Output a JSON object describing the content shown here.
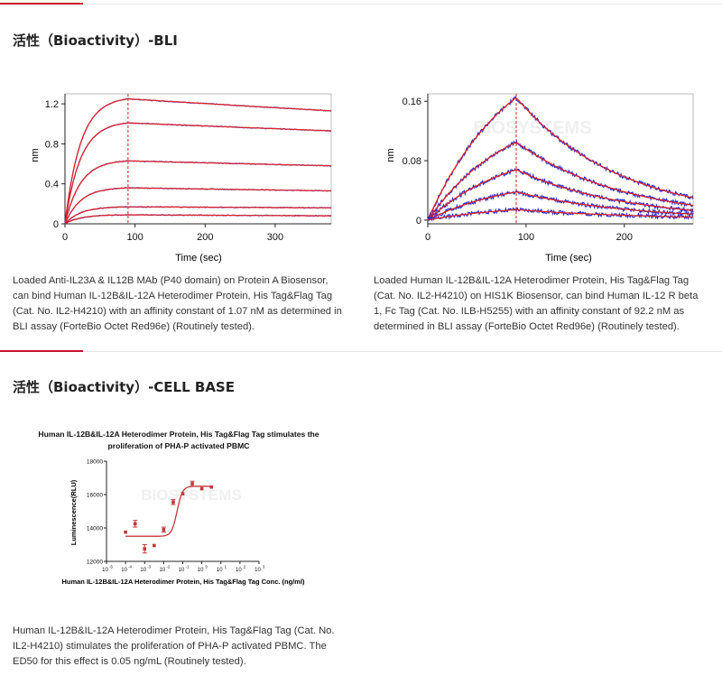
{
  "colors": {
    "accent": "#c8102e",
    "fit": "#e8201f",
    "raw": "#1f2fd4",
    "marker_line": "#e8201f",
    "cell": "#c0393b",
    "axis": "#222222",
    "grid": "#dddddd"
  },
  "sections": [
    {
      "title": "活性（Bioactivity）-BLI"
    },
    {
      "title": "活性（Bioactivity）-CELL BASE"
    }
  ],
  "chart_data": [
    {
      "type": "line",
      "ylabel": "nm",
      "xlabel": "Time (sec)",
      "xlim": [
        0,
        380
      ],
      "ylim": [
        0,
        1.3
      ],
      "xticks": [
        "0",
        "100",
        "200",
        "300"
      ],
      "yticks": [
        "0",
        "0.4",
        "0.8",
        "1.2"
      ],
      "association_end": 90,
      "series": [
        {
          "name": "curve-1",
          "plateau": 1.25,
          "end": 1.13
        },
        {
          "name": "curve-2",
          "plateau": 1.01,
          "end": 0.93
        },
        {
          "name": "curve-3",
          "plateau": 0.63,
          "end": 0.58
        },
        {
          "name": "curve-4",
          "plateau": 0.36,
          "end": 0.33
        },
        {
          "name": "curve-5",
          "plateau": 0.17,
          "end": 0.16
        },
        {
          "name": "curve-6",
          "plateau": 0.09,
          "end": 0.08
        }
      ],
      "caption": "Loaded Anti-IL23A & IL12B MAb (P40 domain) on Protein A Biosensor, can bind Human IL-12B&IL-12A Heterodimer Protein, His Tag&Flag Tag (Cat. No. IL2-H4210) with an affinity constant of 1.07 nM as determined in BLI assay (ForteBio Octet Red96e) (Routinely tested).",
      "caption_lines": [
        "Loaded Anti-IL23A & IL12B MAb (P40 domain) on Protein A Biosensor,",
        "can bind Human IL-12B&IL-12A Heterodimer Protein, His Tag&Flag Tag",
        "(Cat. No. IL2-H4210) with an affinity constant of 1.07 nM as determined in",
        "BLI assay (ForteBio Octet Red96e) (Routinely tested)."
      ]
    },
    {
      "type": "line",
      "ylabel": "nm",
      "xlabel": "Time (sec)",
      "xlim": [
        0,
        270
      ],
      "ylim": [
        -0.005,
        0.17
      ],
      "xticks": [
        "0",
        "100",
        "200"
      ],
      "yticks": [
        "0",
        "0.08",
        "0.16"
      ],
      "association_end": 90,
      "watermark": "BIOSYSTEMS",
      "series": [
        {
          "name": "curve-1",
          "peak": 0.165,
          "end": 0.03
        },
        {
          "name": "curve-2",
          "peak": 0.105,
          "end": 0.02
        },
        {
          "name": "curve-3",
          "peak": 0.068,
          "end": 0.013
        },
        {
          "name": "curve-4",
          "peak": 0.038,
          "end": 0.008
        },
        {
          "name": "curve-5",
          "peak": 0.014,
          "end": 0.004
        }
      ],
      "caption": "Loaded Human IL-12B&IL-12A Heterodimer Protein, His Tag&Flag Tag (Cat. No. IL2-H4210) on HIS1K Biosensor, can bind Human IL-12 R beta 1, Fc Tag (Cat. No. ILB-H5255) with an affinity constant of 92.2 nM as determined in BLI assay (ForteBio Octet Red96e) (Routinely tested).",
      "caption_lines": [
        "Loaded Human IL-12B&IL-12A Heterodimer Protein, His Tag&Flag Tag",
        "(Cat. No. IL2-H4210) on HIS1K Biosensor, can bind Human IL-12 R beta",
        "1, Fc Tag (Cat. No. ILB-H5255) with an affinity constant of 92.2 nM as",
        "determined in BLI assay (ForteBio Octet Red96e) (Routinely tested)."
      ]
    },
    {
      "type": "scatter",
      "title": "Human IL-12B&IL-12A Heterodimer Protein, His Tag&Flag Tag stimulates the proliferation of PHA-P activated PBMC",
      "title_lines": [
        "Human IL-12B&IL-12A Heterodimer Protein, His Tag&Flag Tag stimulates the",
        "proliferation of PHA-P activated PBMC"
      ],
      "xlabel": "Human IL-12B&IL-12A Heterodimer Protein, His Tag&Flag Tag Conc. (ng/ml)",
      "ylabel": "Luminescence(RLU)",
      "x_scale": "log10",
      "xlim": [
        -5,
        3
      ],
      "ylim": [
        12000,
        18000
      ],
      "xticks": [
        "10",
        "10",
        "10",
        "10",
        "10",
        "10",
        "10",
        "10",
        "10"
      ],
      "xtick_exponents": [
        "-5",
        "-4",
        "-3",
        "-2",
        "-1",
        "0",
        "1",
        "2",
        "3"
      ],
      "yticks": [
        "12000",
        "14000",
        "16000",
        "18000"
      ],
      "points": [
        {
          "log_x": -4.0,
          "y": 13750,
          "err": 0
        },
        {
          "log_x": -3.5,
          "y": 14250,
          "err": 200
        },
        {
          "log_x": -3.0,
          "y": 12750,
          "err": 250
        },
        {
          "log_x": -2.5,
          "y": 12950,
          "err": 0
        },
        {
          "log_x": -2.0,
          "y": 13900,
          "err": 150
        },
        {
          "log_x": -1.5,
          "y": 15550,
          "err": 150
        },
        {
          "log_x": -1.0,
          "y": 16050,
          "err": 0
        },
        {
          "log_x": -0.5,
          "y": 16650,
          "err": 150
        },
        {
          "log_x": 0.0,
          "y": 16350,
          "err": 0
        },
        {
          "log_x": 0.5,
          "y": 16450,
          "err": 0
        }
      ],
      "fit": {
        "bottom": 13500,
        "top": 16500,
        "log_ec50": -1.3,
        "hill": 3.0
      },
      "watermark": "BIOSYSTEMS",
      "caption": "Human IL-12B&IL-12A Heterodimer Protein, His Tag&Flag Tag (Cat. No. IL2-H4210) stimulates the proliferation of PHA-P activated PBMC. The ED50 for this effect is 0.05 ng/mL (Routinely tested).",
      "caption_lines": [
        "Human IL-12B&IL-12A Heterodimer Protein, His Tag&Flag Tag (Cat. No.",
        "IL2-H4210) stimulates the proliferation of PHA-P activated PBMC. The",
        "ED50 for this effect is 0.05 ng/mL (Routinely tested)."
      ]
    }
  ]
}
